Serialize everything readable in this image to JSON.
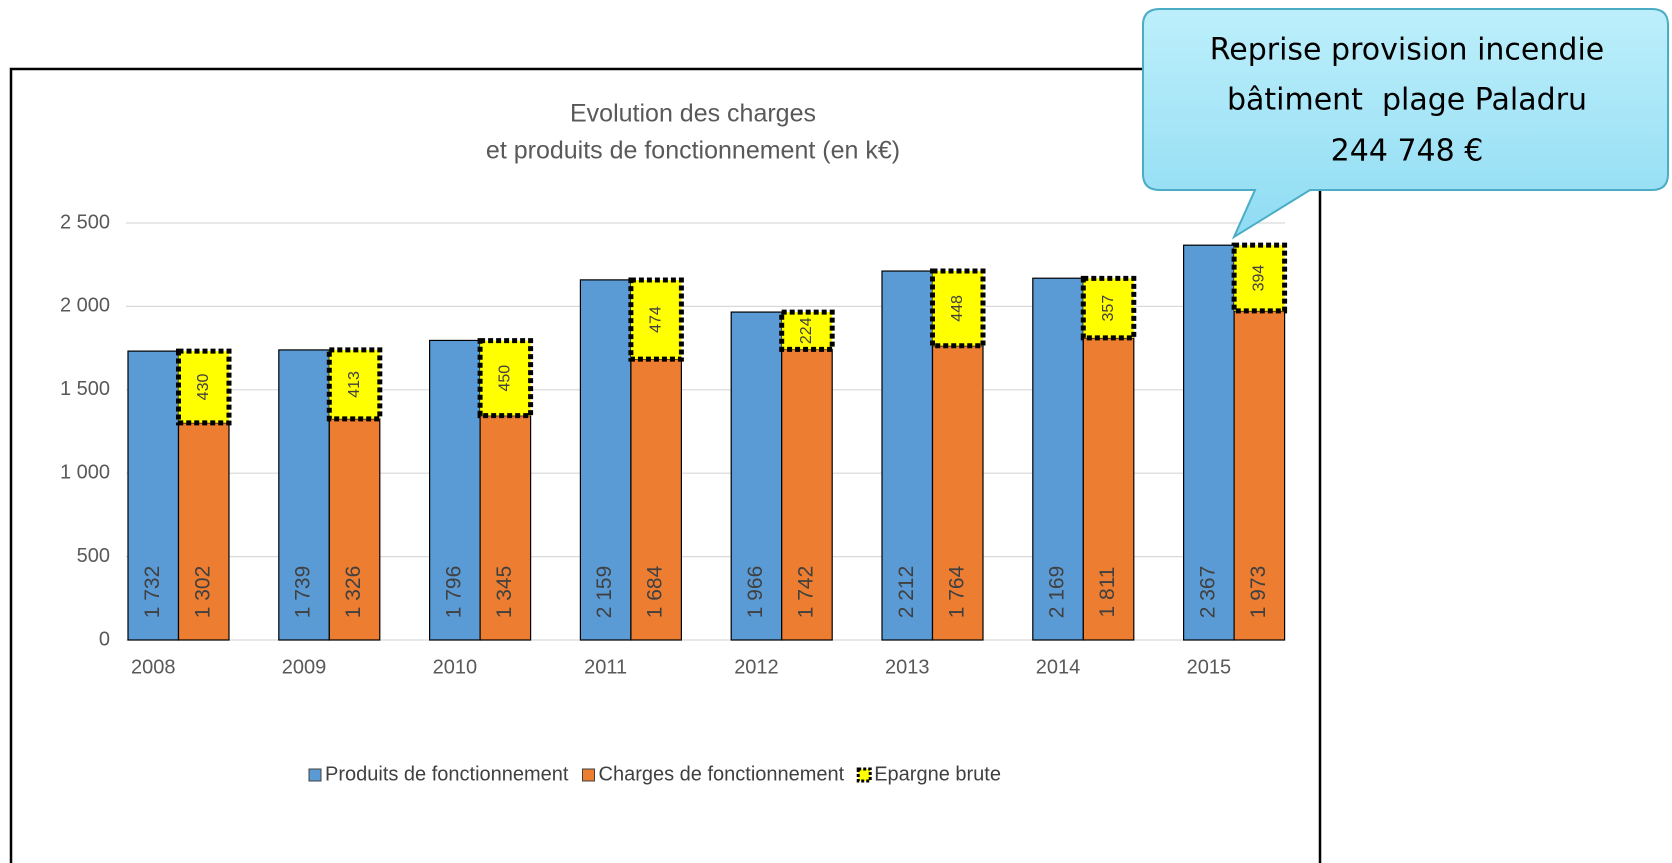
{
  "chart_data": {
    "type": "bar",
    "title": [
      "Evolution des charges",
      "et produits de fonctionnement (en k€)"
    ],
    "categories": [
      "2008",
      "2009",
      "2010",
      "2011",
      "2012",
      "2013",
      "2014",
      "2015"
    ],
    "series": [
      {
        "name": "Produits de fonctionnement",
        "color": "#5b9bd5",
        "stack": "a",
        "values": [
          1732,
          1739,
          1796,
          2159,
          1966,
          2212,
          2169,
          2367
        ],
        "value_labels": [
          "1 732",
          "1 739",
          "1 796",
          "2 159",
          "1 966",
          "2 212",
          "2 169",
          "2 367"
        ]
      },
      {
        "name": "Charges de fonctionnement",
        "color": "#ed7d31",
        "stack": "b",
        "values": [
          1302,
          1326,
          1345,
          1684,
          1742,
          1764,
          1811,
          1973
        ],
        "value_labels": [
          "1 302",
          "1 326",
          "1 345",
          "1 684",
          "1 742",
          "1 764",
          "1 811",
          "1 973"
        ]
      },
      {
        "name": "Epargne brute",
        "color": "#ffff00",
        "stack": "b",
        "values": [
          430,
          413,
          450,
          474,
          224,
          448,
          357,
          394
        ]
      }
    ],
    "ylim": [
      0,
      2500
    ],
    "yticks": [
      0,
      500,
      {
        "value": 1000,
        "label": "1 000"
      },
      {
        "value": 1500,
        "label": "1 500"
      },
      {
        "value": 2000,
        "label": "2 000"
      },
      {
        "value": 2500,
        "label": "2 500"
      }
    ],
    "grid": true,
    "legend": "bottom",
    "annotation": [
      "Reprise provision incendie",
      "bâtiment  plage Paladru",
      "244 748 €"
    ]
  }
}
